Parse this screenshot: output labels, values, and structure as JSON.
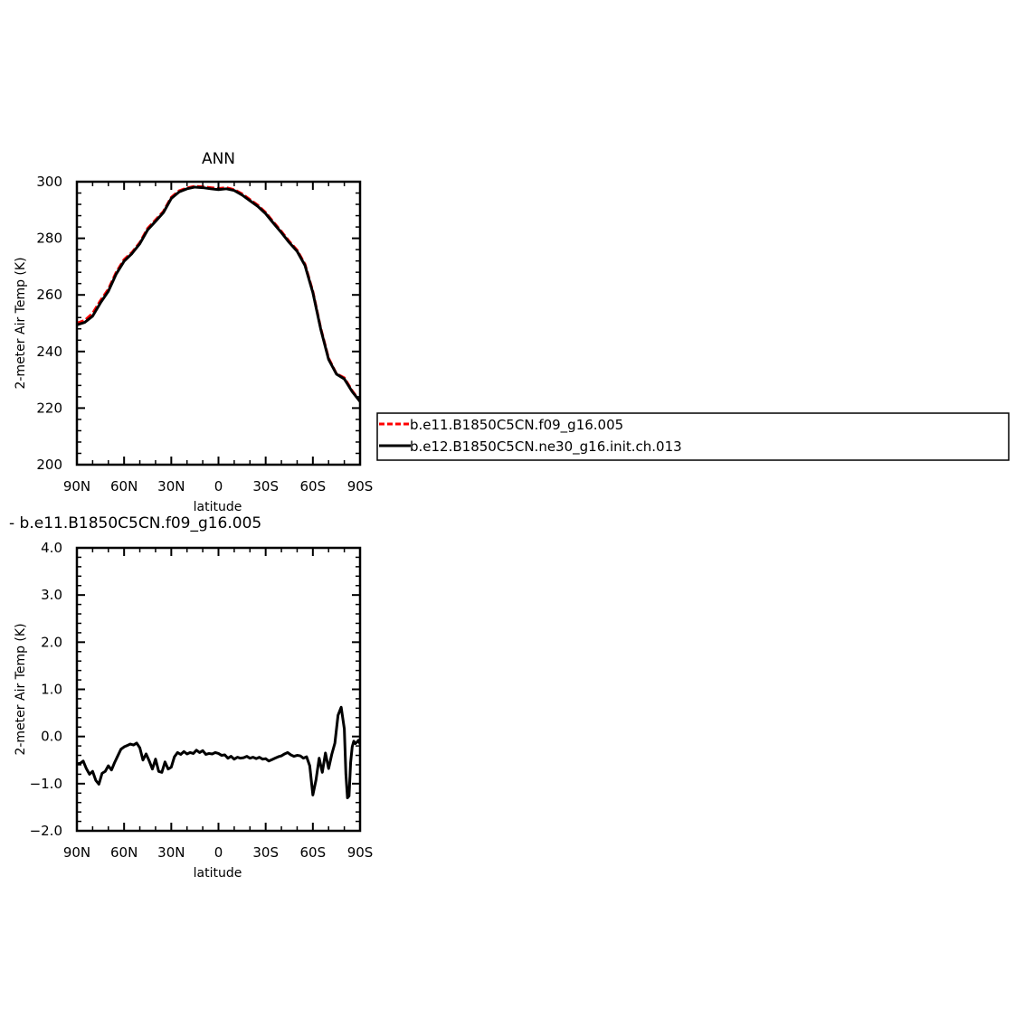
{
  "chart_data": [
    {
      "type": "line",
      "title": "ANN",
      "xlabel": "latitude",
      "ylabel": "2-meter Air Temp (K)",
      "x_direction": "north-to-south",
      "xlim": [
        90,
        -90
      ],
      "ylim": [
        200,
        300
      ],
      "x_ticks": [
        90,
        60,
        30,
        0,
        -30,
        -60,
        -90
      ],
      "x_tick_labels": [
        "90N",
        "60N",
        "30N",
        "0",
        "30S",
        "60S",
        "90S"
      ],
      "y_ticks": [
        200,
        220,
        240,
        260,
        280,
        300
      ],
      "y_tick_labels": [
        "200",
        "220",
        "240",
        "260",
        "280",
        "300"
      ],
      "series": [
        {
          "name": "b.e11.B1850C5CN.f09_g16.005",
          "color": "#ff0000",
          "dash": "dashed",
          "x": [
            90,
            85,
            80,
            75,
            70,
            65,
            60,
            55,
            50,
            45,
            40,
            35,
            30,
            25,
            20,
            15,
            10,
            5,
            0,
            -5,
            -10,
            -15,
            -20,
            -25,
            -30,
            -35,
            -40,
            -45,
            -50,
            -55,
            -60,
            -65,
            -70,
            -75,
            -80,
            -85,
            -90
          ],
          "y": [
            250,
            251,
            253.5,
            258,
            262,
            268,
            272.5,
            275,
            278.5,
            283.5,
            286.5,
            289.5,
            294.5,
            296.8,
            297.8,
            298.4,
            298.2,
            297.9,
            297.6,
            297.9,
            297.2,
            295.7,
            293.7,
            291.7,
            289.1,
            285.7,
            282.4,
            278.9,
            275.8,
            270.8,
            261.2,
            248.2,
            237.6,
            232.1,
            230.7,
            226.1,
            222.4
          ]
        },
        {
          "name": "b.e12.B1850C5CN.ne30_g16.init.ch.013",
          "color": "#000000",
          "dash": "solid",
          "x": [
            90,
            85,
            80,
            75,
            70,
            65,
            60,
            55,
            50,
            45,
            40,
            35,
            30,
            25,
            20,
            15,
            10,
            5,
            0,
            -5,
            -10,
            -15,
            -20,
            -25,
            -30,
            -35,
            -40,
            -45,
            -50,
            -55,
            -60,
            -65,
            -70,
            -75,
            -80,
            -85,
            -90
          ],
          "y": [
            249.4,
            250.3,
            252.5,
            257.2,
            261.3,
            267.4,
            271.9,
            274.6,
            278.1,
            283.0,
            286.0,
            289.1,
            294.1,
            296.4,
            297.5,
            298.1,
            297.9,
            297.5,
            297.2,
            297.5,
            296.9,
            295.3,
            293.3,
            291.3,
            288.7,
            285.3,
            282.0,
            278.5,
            275.4,
            270.4,
            260.8,
            247.9,
            237.2,
            232.0,
            230.3,
            225.8,
            222.3
          ]
        }
      ]
    },
    {
      "type": "line",
      "title": "- b.e11.B1850C5CN.f09_g16.005",
      "xlabel": "latitude",
      "ylabel": "2-meter Air Temp (K)",
      "x_direction": "north-to-south",
      "xlim": [
        90,
        -90
      ],
      "ylim": [
        -2.0,
        4.0
      ],
      "x_ticks": [
        90,
        60,
        30,
        0,
        -30,
        -60,
        -90
      ],
      "x_tick_labels": [
        "90N",
        "60N",
        "30N",
        "0",
        "30S",
        "60S",
        "90S"
      ],
      "y_ticks": [
        -2.0,
        -1.0,
        0.0,
        1.0,
        2.0,
        3.0,
        4.0
      ],
      "y_tick_labels": [
        "−2.0",
        "−1.0",
        "0.0",
        "1.0",
        "2.0",
        "3.0",
        "4.0"
      ],
      "series": [
        {
          "color": "#000000",
          "dash": "solid",
          "x": [
            90,
            88,
            86,
            84,
            82,
            80,
            78,
            76,
            74,
            72,
            70,
            68,
            66,
            64,
            62,
            60,
            58,
            56,
            54,
            52,
            50,
            48,
            46,
            44,
            42,
            40,
            38,
            36,
            34,
            32,
            30,
            28,
            26,
            24,
            22,
            20,
            18,
            16,
            14,
            12,
            10,
            8,
            6,
            4,
            2,
            0,
            -2,
            -4,
            -6,
            -8,
            -10,
            -12,
            -14,
            -16,
            -18,
            -20,
            -22,
            -24,
            -26,
            -28,
            -30,
            -32,
            -34,
            -36,
            -38,
            -40,
            -42,
            -44,
            -46,
            -48,
            -50,
            -52,
            -54,
            -56,
            -58,
            -60,
            -62,
            -64,
            -66,
            -68,
            -70,
            -72,
            -74,
            -76,
            -78,
            -80,
            -81,
            -82,
            -83,
            -84,
            -85,
            -86,
            -87,
            -88,
            -89,
            -90
          ],
          "y": [
            -0.58,
            -0.57,
            -0.52,
            -0.68,
            -0.8,
            -0.74,
            -0.93,
            -1.01,
            -0.78,
            -0.74,
            -0.62,
            -0.71,
            -0.55,
            -0.41,
            -0.27,
            -0.22,
            -0.19,
            -0.16,
            -0.18,
            -0.14,
            -0.24,
            -0.5,
            -0.37,
            -0.52,
            -0.69,
            -0.48,
            -0.74,
            -0.76,
            -0.54,
            -0.69,
            -0.65,
            -0.43,
            -0.34,
            -0.38,
            -0.32,
            -0.37,
            -0.34,
            -0.36,
            -0.29,
            -0.34,
            -0.3,
            -0.38,
            -0.36,
            -0.37,
            -0.34,
            -0.36,
            -0.4,
            -0.39,
            -0.46,
            -0.42,
            -0.48,
            -0.44,
            -0.46,
            -0.45,
            -0.42,
            -0.46,
            -0.44,
            -0.47,
            -0.44,
            -0.48,
            -0.47,
            -0.52,
            -0.49,
            -0.46,
            -0.43,
            -0.41,
            -0.37,
            -0.34,
            -0.39,
            -0.42,
            -0.4,
            -0.41,
            -0.46,
            -0.43,
            -0.62,
            -1.24,
            -0.92,
            -0.46,
            -0.76,
            -0.35,
            -0.68,
            -0.38,
            -0.14,
            0.45,
            0.62,
            0.16,
            -0.8,
            -1.3,
            -1.26,
            -0.55,
            -0.22,
            -0.1,
            -0.15,
            -0.12,
            -0.08,
            -0.16
          ]
        }
      ]
    }
  ],
  "legend": {
    "items": [
      {
        "label": "b.e11.B1850C5CN.f09_g16.005",
        "color": "#ff0000",
        "dash": "dashed"
      },
      {
        "label": "b.e12.B1850C5CN.ne30_g16.init.ch.013",
        "color": "#000000",
        "dash": "solid"
      }
    ]
  }
}
